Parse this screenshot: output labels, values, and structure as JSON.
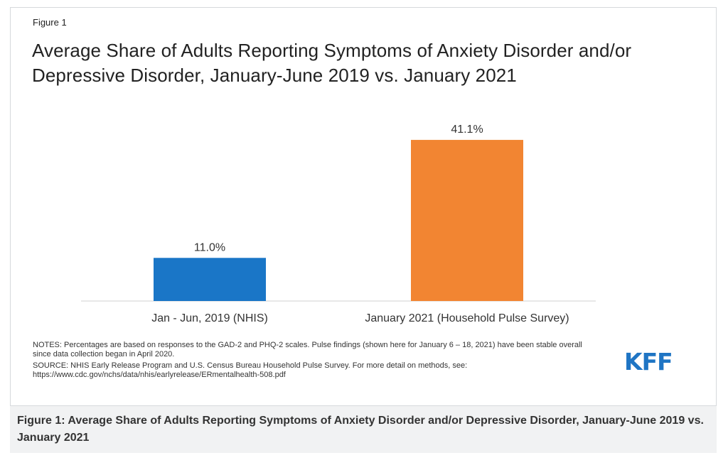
{
  "figure": {
    "label": "Figure 1",
    "caption": "Figure 1: Average Share of Adults Reporting Symptoms of Anxiety Disorder and/or Depressive Disorder, January-June 2019 vs. January 2021"
  },
  "notes": {
    "notes_text": "NOTES: Percentages are based on responses to the GAD-2 and PHQ-2 scales. Pulse findings (shown here for January 6 – 18, 2021) have been stable overall since data collection began in April 2020.",
    "source_text": "SOURCE: NHIS Early Release Program and U.S. Census Bureau Household Pulse Survey. For more detail on methods, see: https://www.cdc.gov/nchs/data/nhis/earlyrelease/ERmentalhealth-508.pdf"
  },
  "logo": {
    "text": "KFF"
  },
  "chart_data": {
    "type": "bar",
    "title": "Average Share of Adults Reporting Symptoms of Anxiety Disorder and/or Depressive Disorder, January-June 2019 vs. January 2021",
    "categories": [
      "Jan - Jun, 2019 (NHIS)",
      "January 2021 (Household Pulse Survey)"
    ],
    "values": [
      11.0,
      41.1
    ],
    "value_labels": [
      "11.0%",
      "41.1%"
    ],
    "colors": [
      "#1a76c7",
      "#f28532"
    ],
    "xlabel": "",
    "ylabel": "",
    "ylim": [
      0,
      46
    ],
    "grid": false,
    "legend": "none"
  }
}
